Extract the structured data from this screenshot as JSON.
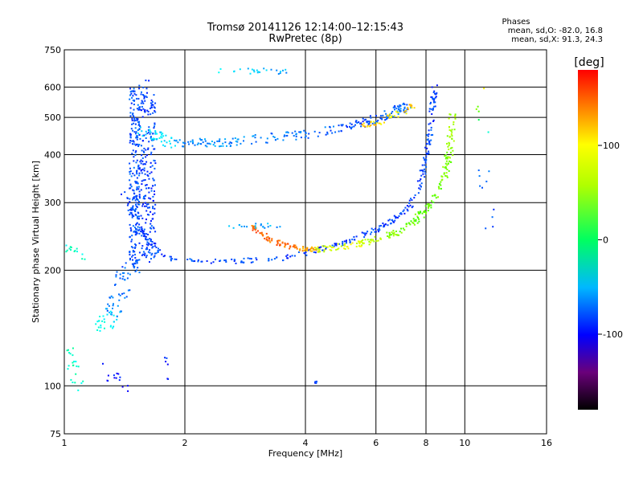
{
  "header": {
    "title": "Tromsø 20141126 12:14:00–12:15:43",
    "subtitle": "RwPretec (8p)",
    "stats_title": "Phases",
    "stats_o": "mean, sd,O: -82.0, 16.8",
    "stats_x": "mean, sd,X: 91.3, 24.3"
  },
  "chart_data": {
    "type": "scatter",
    "title": "Tromsø 20141126 12:14:00–12:15:43",
    "subtitle": "RwPretec (8p)",
    "xlabel": "Frequency [MHz]",
    "ylabel": "Stationary phase Virtual Height [km]",
    "x_scale": "log2",
    "y_scale": "log",
    "xlim": [
      1,
      16
    ],
    "ylim": [
      75,
      750
    ],
    "x_ticks": [
      1,
      2,
      4,
      6,
      8,
      10,
      16
    ],
    "y_ticks": [
      75,
      100,
      200,
      300,
      400,
      500,
      600,
      750
    ],
    "grid": true,
    "colorbar": {
      "label": "[deg]",
      "range": [
        -180,
        180
      ],
      "ticks": [
        100,
        0,
        -100
      ]
    },
    "traces": [
      {
        "segments": [
          [
            1.5,
            600,
            -105
          ],
          [
            1.5,
            200,
            -105
          ]
        ],
        "spread": 0.015,
        "n": 260
      },
      {
        "segments": [
          [
            1.62,
            620,
            -110
          ],
          [
            1.62,
            210,
            -110
          ]
        ],
        "spread": 0.02,
        "n": 220
      },
      {
        "segments": [
          [
            1.45,
            210,
            -100
          ],
          [
            1.35,
            160,
            -95
          ],
          [
            1.25,
            140,
            -30
          ]
        ],
        "spread": 0.025,
        "n": 80
      },
      {
        "segments": [
          [
            1.4,
            320,
            -110
          ],
          [
            1.6,
            240,
            -110
          ],
          [
            1.8,
            215,
            -110
          ],
          [
            2.5,
            210,
            -110
          ],
          [
            3.5,
            215,
            -110
          ],
          [
            4.2,
            225,
            -110
          ],
          [
            5.0,
            235,
            -110
          ],
          [
            6.0,
            255,
            -110
          ],
          [
            6.8,
            275,
            -110
          ],
          [
            7.4,
            300,
            -110
          ],
          [
            7.8,
            350,
            -110
          ],
          [
            8.1,
            420,
            -110
          ],
          [
            8.3,
            520,
            -110
          ],
          [
            8.4,
            610,
            -110
          ]
        ],
        "spread": 0.008,
        "n": 320
      },
      {
        "segments": [
          [
            1.9,
            430,
            -85
          ],
          [
            2.5,
            430,
            -85
          ],
          [
            3.5,
            445,
            -90
          ],
          [
            4.5,
            460,
            -100
          ],
          [
            5.5,
            480,
            -110
          ],
          [
            6.5,
            510,
            -100
          ],
          [
            7.2,
            540,
            -95
          ]
        ],
        "spread": 0.015,
        "n": 220
      },
      {
        "segments": [
          [
            1.55,
            460,
            -60
          ],
          [
            1.9,
            430,
            -60
          ]
        ],
        "spread": 0.02,
        "n": 40
      },
      {
        "segments": [
          [
            2.9,
            262,
            150
          ],
          [
            3.3,
            238,
            150
          ],
          [
            3.8,
            228,
            140
          ],
          [
            4.3,
            226,
            120
          ]
        ],
        "spread": 0.008,
        "n": 90
      },
      {
        "segments": [
          [
            4.3,
            226,
            95
          ],
          [
            5.2,
            232,
            95
          ],
          [
            6.0,
            240,
            80
          ],
          [
            6.8,
            250,
            60
          ],
          [
            7.5,
            268,
            55
          ],
          [
            8.3,
            300,
            55
          ],
          [
            8.9,
            350,
            60
          ],
          [
            9.2,
            420,
            70
          ],
          [
            9.3,
            520,
            75
          ]
        ],
        "spread": 0.01,
        "n": 230
      },
      {
        "segments": [
          [
            5.6,
            475,
            120
          ],
          [
            6.2,
            490,
            110
          ],
          [
            6.8,
            510,
            100
          ],
          [
            7.5,
            540,
            130
          ]
        ],
        "spread": 0.01,
        "n": 45
      },
      {
        "segments": [
          [
            2.6,
            262,
            -80
          ],
          [
            3.4,
            262,
            -80
          ]
        ],
        "spread": 0.01,
        "n": 20
      },
      {
        "segments": [
          [
            1.0,
            230,
            -40
          ],
          [
            1.15,
            215,
            -40
          ]
        ],
        "spread": 0.01,
        "n": 14
      },
      {
        "segments": [
          [
            1.02,
            125,
            -35
          ],
          [
            1.08,
            100,
            -35
          ]
        ],
        "spread": 0.02,
        "n": 24
      },
      {
        "segments": [
          [
            1.28,
            110,
            -125
          ],
          [
            1.45,
            100,
            -125
          ]
        ],
        "spread": 0.025,
        "n": 14
      },
      {
        "segments": [
          [
            2.4,
            660,
            -60
          ],
          [
            3.7,
            660,
            -80
          ]
        ],
        "spread": 0.01,
        "n": 24
      },
      {
        "segments": [
          [
            11.1,
            600,
            120
          ],
          [
            11.2,
            400,
            -100
          ],
          [
            11.4,
            250,
            -110
          ]
        ],
        "spread": 0.02,
        "n": 16
      },
      {
        "segments": [
          [
            4.2,
            102,
            -110
          ],
          [
            4.25,
            102,
            -110
          ]
        ],
        "spread": 0.005,
        "n": 5
      },
      {
        "segments": [
          [
            1.8,
            120,
            -120
          ],
          [
            1.8,
            100,
            -120
          ]
        ],
        "spread": 0.005,
        "n": 6
      }
    ]
  }
}
